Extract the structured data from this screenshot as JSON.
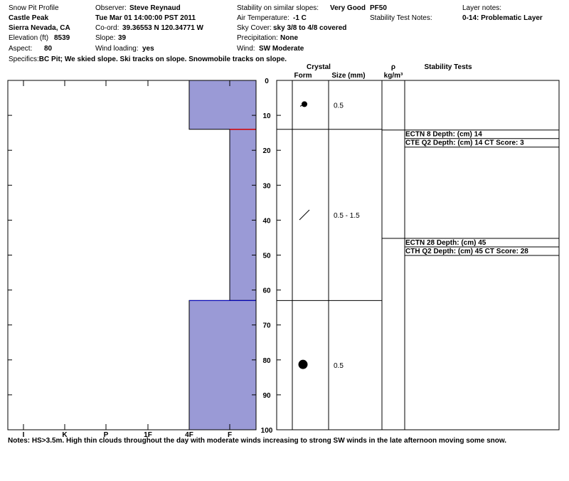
{
  "header": {
    "title": "Snow Pit Profile",
    "location": "Castle Peak",
    "range": "Sierra Nevada, CA",
    "elevation_label": "Elevation (ft)",
    "elevation": "8539",
    "aspect_label": "Aspect:",
    "aspect": "80",
    "specifics_label": "Specifics:",
    "specifics": "BC Pit; We skied slope. Ski tracks on slope. Snowmobile tracks on slope.",
    "observer_label": "Observer:",
    "observer": "Steve Reynaud",
    "datetime": "Tue Mar 01 14:00:00 PST 2011",
    "coord_label": "Co-ord:",
    "coord": "39.36553 N 120.34771 W",
    "slope_label": "Slope:",
    "slope": "39",
    "wind_loading_label": "Wind loading:",
    "wind_loading": "yes",
    "stability_label": "Stability on similar slopes:",
    "stability": "Very Good",
    "air_temp_label": "Air Temperature:",
    "air_temp": "-1 C",
    "sky_label": "Sky Cover:",
    "sky": "sky 3/8 to 4/8 covered",
    "precip_label": "Precipitation:",
    "precip": "None",
    "wind_label": "Wind:",
    "wind": "SW Moderate",
    "pf": "PF50",
    "stab_notes_label": "Stability Test Notes:",
    "layer_notes_label": "Layer notes:",
    "layer_note": "0-14: Problematic Layer"
  },
  "columns": {
    "crystal": "Crystal",
    "form": "Form",
    "size": "Size (mm)",
    "rho": "ρ",
    "density_unit": "kg/m³",
    "stability_tests": "Stability Tests"
  },
  "chart_data": {
    "type": "bar",
    "title": "",
    "xlabel": "",
    "ylabel": "",
    "hardness_scale": [
      "I",
      "K",
      "P",
      "1F",
      "4F",
      "F"
    ],
    "depth_ticks": [
      0,
      10,
      20,
      30,
      40,
      50,
      60,
      70,
      80,
      90,
      100
    ],
    "ylim": [
      0,
      100
    ],
    "layers": [
      {
        "top": 0,
        "bottom": 14,
        "hardness": "4F",
        "crystal_size": "0.5",
        "crystal_form": "dot"
      },
      {
        "top": 14,
        "bottom": 63,
        "hardness": "F",
        "crystal_size": "0.5 - 1.5",
        "crystal_form": "slash"
      },
      {
        "top": 63,
        "bottom": 100,
        "hardness": "4F",
        "crystal_size": "0.5",
        "crystal_form": "large-dot"
      }
    ],
    "problem_layer_depth": 14,
    "colors": {
      "layer_fill": "#9a9ad6",
      "problem_line": "#d40000",
      "layer_edge": "#0000cc"
    }
  },
  "stability_tests": [
    {
      "depth": 14,
      "lines": [
        "ECTN 8   Depth: (cm) 14",
        "CTE Q2 Depth: (cm) 14 CT Score: 3"
      ]
    },
    {
      "depth": 45,
      "lines": [
        "ECTN 28   Depth: (cm) 45",
        "CTH Q2 Depth: (cm) 45 CT Score: 28"
      ]
    }
  ],
  "notes_label": "Notes:",
  "notes": "HS>3.5m.  High thin clouds throughout the day with moderate winds increasing to strong SW winds in the late afternoon moving some snow."
}
